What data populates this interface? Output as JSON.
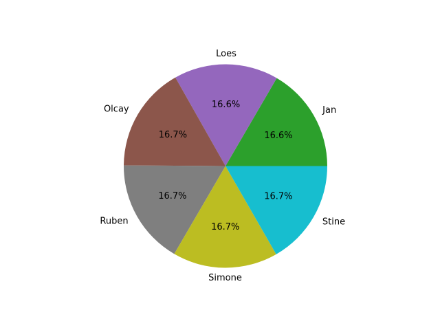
{
  "chart_data": {
    "type": "pie",
    "title": "",
    "slices": [
      {
        "label": "Jan",
        "value": 16.6,
        "pct_label": "16.6%",
        "color": "#2ca02c"
      },
      {
        "label": "Loes",
        "value": 16.6,
        "pct_label": "16.6%",
        "color": "#9467bd"
      },
      {
        "label": "Olcay",
        "value": 16.7,
        "pct_label": "16.7%",
        "color": "#8c564b"
      },
      {
        "label": "Ruben",
        "value": 16.7,
        "pct_label": "16.7%",
        "color": "#7f7f7f"
      },
      {
        "label": "Simone",
        "value": 16.7,
        "pct_label": "16.7%",
        "color": "#bcbd22"
      },
      {
        "label": "Stine",
        "value": 16.7,
        "pct_label": "16.7%",
        "color": "#17becf"
      }
    ],
    "start_angle_deg": 0,
    "direction": "counterclockwise",
    "legend": "none"
  }
}
